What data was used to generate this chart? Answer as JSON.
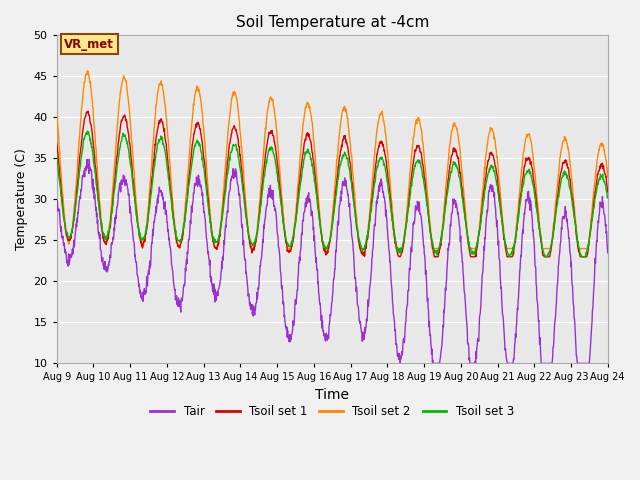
{
  "title": "Soil Temperature at -4cm",
  "xlabel": "Time",
  "ylabel": "Temperature (C)",
  "ylim": [
    10,
    50
  ],
  "xlim": [
    0,
    360
  ],
  "fig_facecolor": "#f0f0f0",
  "plot_bg_color": "#e8e8e8",
  "colors": {
    "Tair": "#9b30d0",
    "Tsoil1": "#dd0000",
    "Tsoil2": "#ff8800",
    "Tsoil3": "#00bb00"
  },
  "legend_labels": [
    "Tair",
    "Tsoil set 1",
    "Tsoil set 2",
    "Tsoil set 3"
  ],
  "xtick_labels": [
    "Aug 9",
    "Aug 10",
    "Aug 11",
    "Aug 12",
    "Aug 13",
    "Aug 14",
    "Aug 15",
    "Aug 16",
    "Aug 17",
    "Aug 18",
    "Aug 19",
    "Aug 20",
    "Aug 21",
    "Aug 22",
    "Aug 23",
    "Aug 24"
  ],
  "annotation_text": "VR_met",
  "annotation_bg": "#ffe88a",
  "annotation_border": "#8b4513"
}
